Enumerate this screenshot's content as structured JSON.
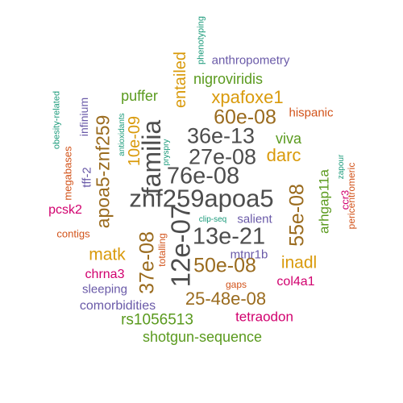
{
  "title": "",
  "colors": {
    "gray": "#4d4d4d",
    "brown": "#9a6b1e",
    "gold": "#d99a0b",
    "green": "#5a9a1e",
    "purple": "#6a5aa8",
    "magenta": "#d1006e",
    "orange": "#d2531a",
    "teal": "#1a9a7a"
  },
  "words": [
    {
      "text": "znf259apoa5",
      "color": "gray",
      "vertical": false
    },
    {
      "text": "76e-08",
      "color": "gray",
      "vertical": false
    },
    {
      "text": "familia",
      "color": "gray",
      "vertical": true
    },
    {
      "text": "27e-08",
      "color": "gray",
      "vertical": false
    },
    {
      "text": "36e-13",
      "color": "gray",
      "vertical": false
    },
    {
      "text": "13e-21",
      "color": "gray",
      "vertical": false
    },
    {
      "text": "12e-07",
      "color": "gray",
      "vertical": true
    },
    {
      "text": "apoa5-znf259",
      "color": "brown",
      "vertical": true
    },
    {
      "text": "60e-08",
      "color": "brown",
      "vertical": false
    },
    {
      "text": "50e-08",
      "color": "brown",
      "vertical": false
    },
    {
      "text": "25-48e-08",
      "color": "brown",
      "vertical": false
    },
    {
      "text": "37e-08",
      "color": "brown",
      "vertical": true
    },
    {
      "text": "55e-08",
      "color": "brown",
      "vertical": true
    },
    {
      "text": "xpafoxe1",
      "color": "gold",
      "vertical": false
    },
    {
      "text": "darc",
      "color": "gold",
      "vertical": false
    },
    {
      "text": "entailed",
      "color": "gold",
      "vertical": true
    },
    {
      "text": "10e-09",
      "color": "gold",
      "vertical": true
    },
    {
      "text": "matk",
      "color": "gold",
      "vertical": false
    },
    {
      "text": "inadl",
      "color": "gold",
      "vertical": false
    },
    {
      "text": "nigroviridis",
      "color": "green",
      "vertical": false
    },
    {
      "text": "puffer",
      "color": "green",
      "vertical": false
    },
    {
      "text": "viva",
      "color": "green",
      "vertical": false
    },
    {
      "text": "arhgap11a",
      "color": "green",
      "vertical": true
    },
    {
      "text": "rs1056513",
      "color": "green",
      "vertical": false
    },
    {
      "text": "shotgun-sequence",
      "color": "green",
      "vertical": false
    },
    {
      "text": "anthropometry",
      "color": "purple",
      "vertical": false
    },
    {
      "text": "infinium",
      "color": "purple",
      "vertical": true
    },
    {
      "text": "salient",
      "color": "purple",
      "vertical": false
    },
    {
      "text": "mtnr1b",
      "color": "purple",
      "vertical": false
    },
    {
      "text": "sleeping",
      "color": "purple",
      "vertical": false
    },
    {
      "text": "comorbidities",
      "color": "purple",
      "vertical": false
    },
    {
      "text": "tff-2",
      "color": "purple",
      "vertical": true
    },
    {
      "text": "pcsk2",
      "color": "magenta",
      "vertical": false
    },
    {
      "text": "chrna3",
      "color": "magenta",
      "vertical": false
    },
    {
      "text": "col4a1",
      "color": "magenta",
      "vertical": false
    },
    {
      "text": "tetraodon",
      "color": "magenta",
      "vertical": false
    },
    {
      "text": "ccr3",
      "color": "magenta",
      "vertical": true
    },
    {
      "text": "hispanic",
      "color": "orange",
      "vertical": false
    },
    {
      "text": "megabases",
      "color": "orange",
      "vertical": true
    },
    {
      "text": "contigs",
      "color": "orange",
      "vertical": false
    },
    {
      "text": "totalling",
      "color": "orange",
      "vertical": true
    },
    {
      "text": "gaps",
      "color": "orange",
      "vertical": false
    },
    {
      "text": "pericentromeric",
      "color": "orange",
      "vertical": true
    },
    {
      "text": "phenotyping",
      "color": "teal",
      "vertical": true
    },
    {
      "text": "obesity-related",
      "color": "teal",
      "vertical": true
    },
    {
      "text": "antioxidants",
      "color": "teal",
      "vertical": true
    },
    {
      "text": "pryspry",
      "color": "teal",
      "vertical": true
    },
    {
      "text": "clip-seq",
      "color": "teal",
      "vertical": false
    },
    {
      "text": "zapour",
      "color": "teal",
      "vertical": true
    }
  ]
}
